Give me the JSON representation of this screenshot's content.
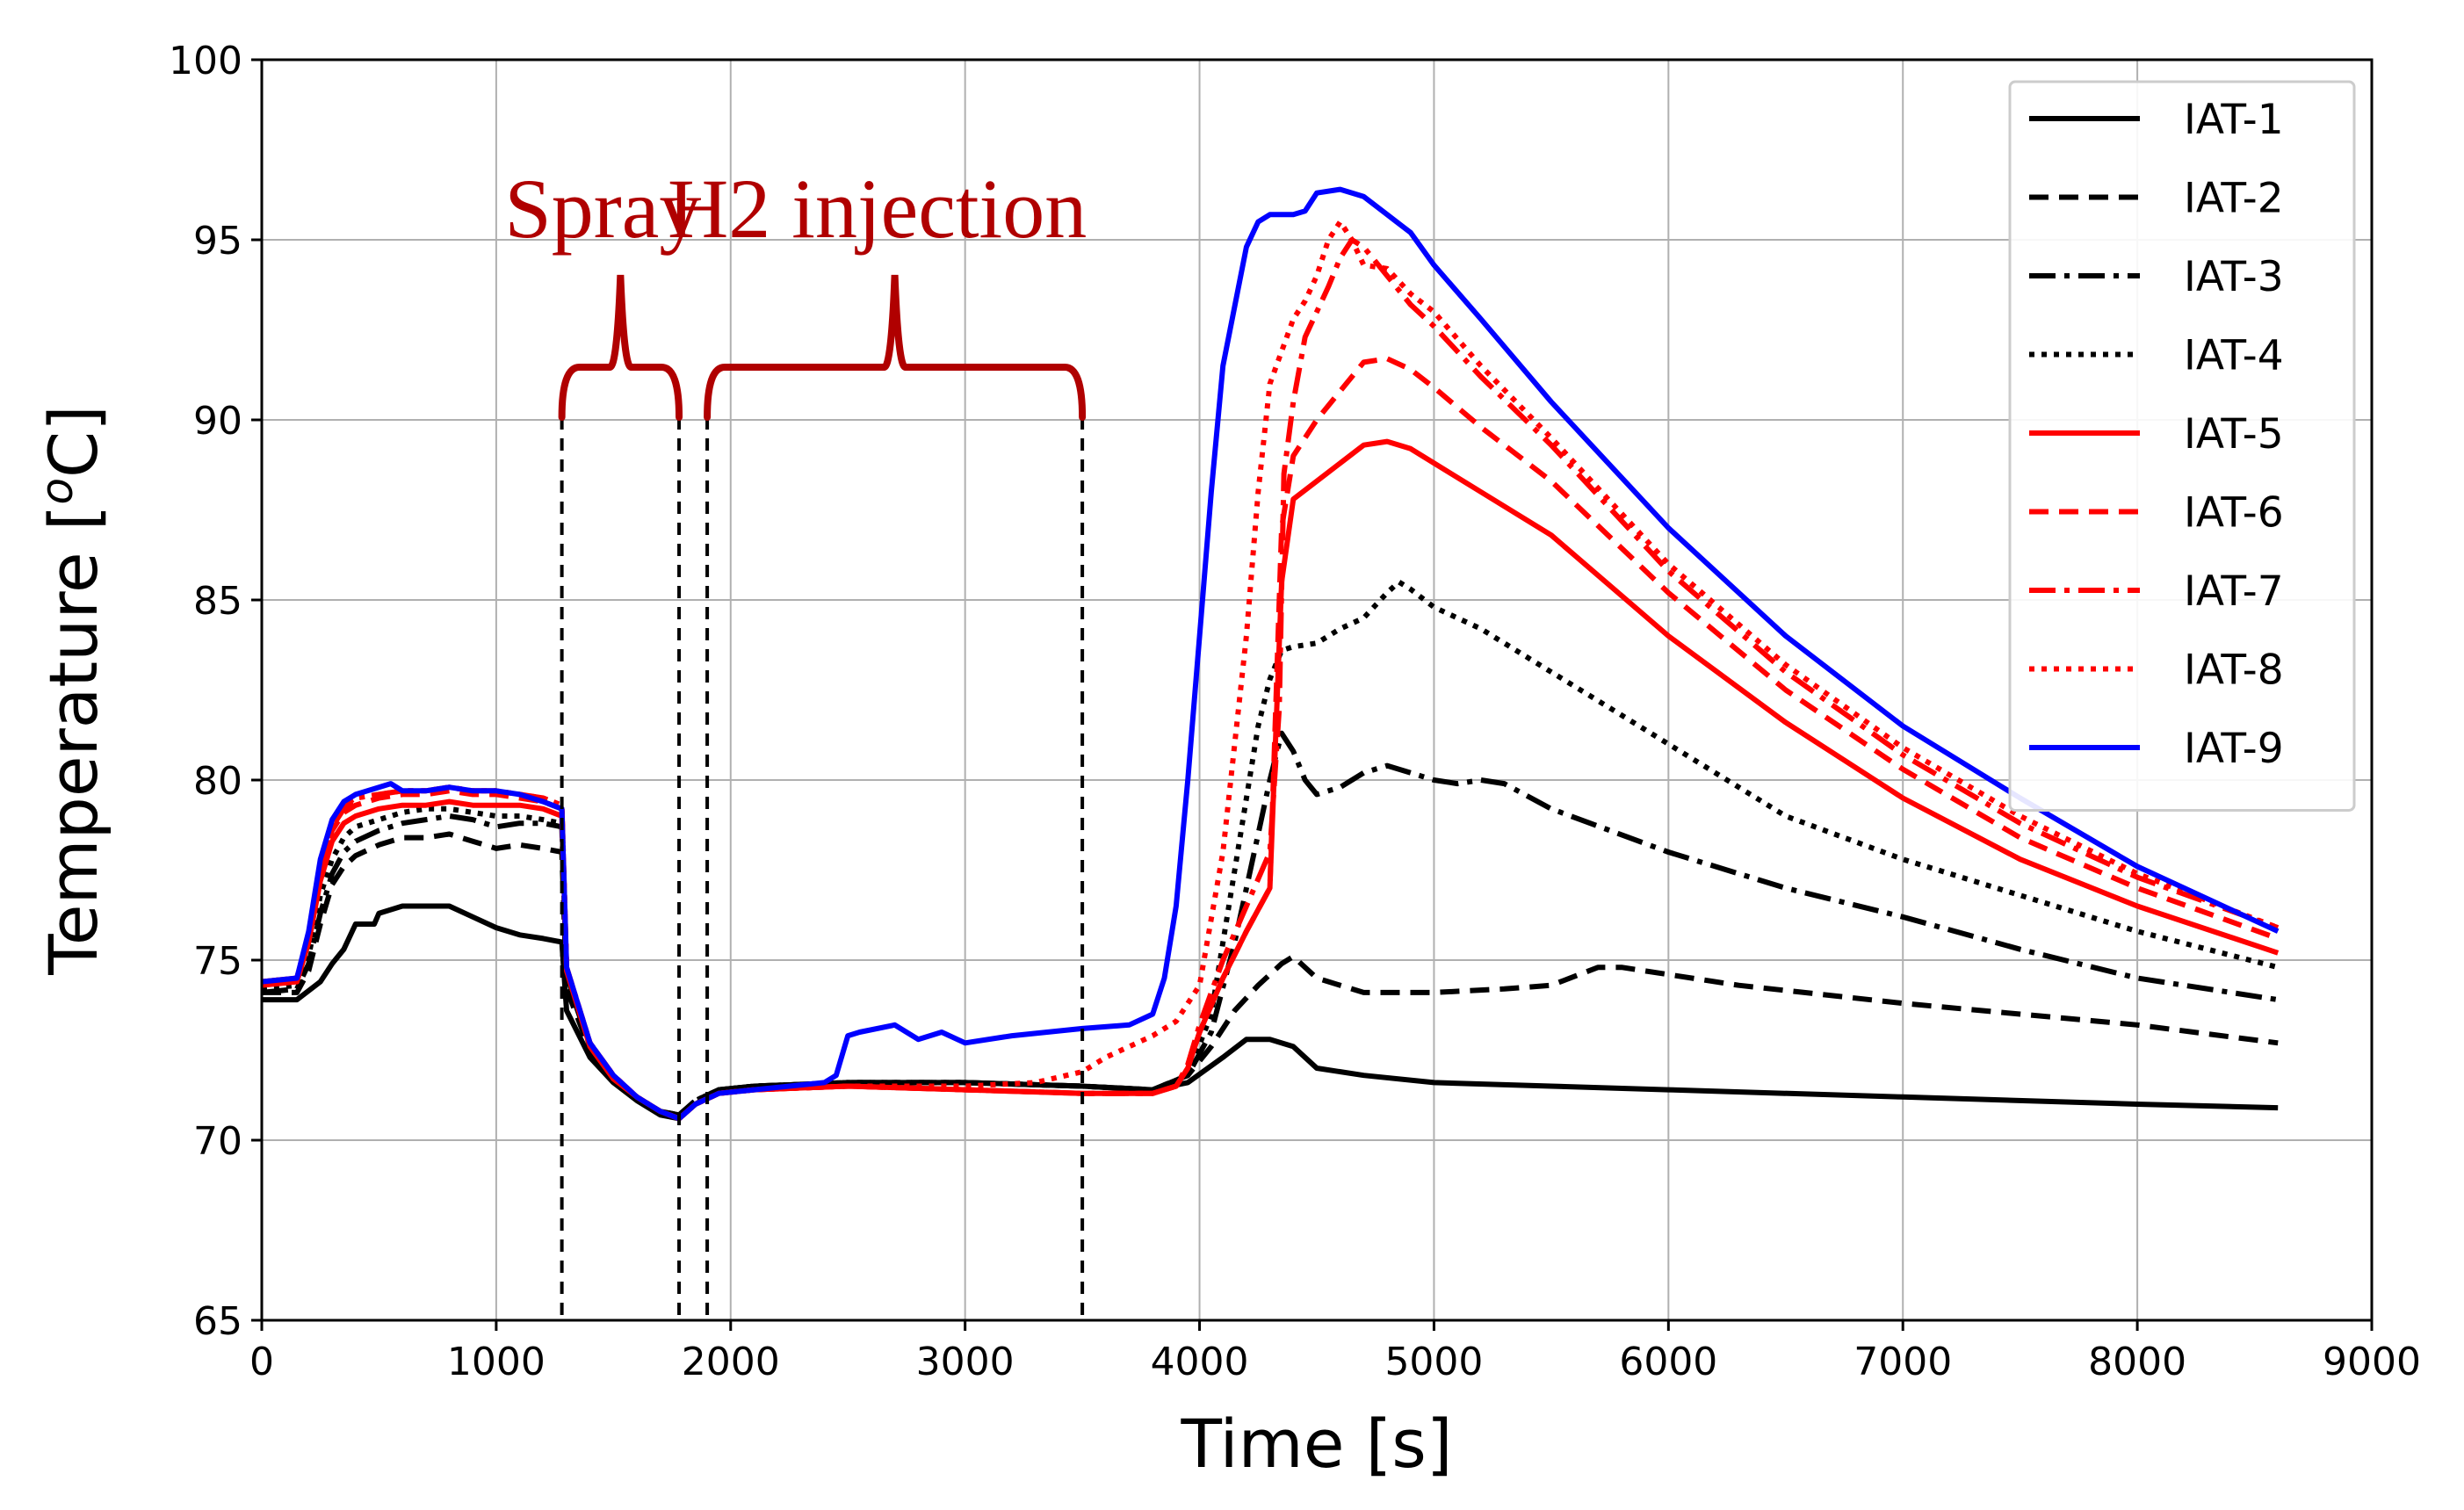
{
  "chart_data": {
    "type": "line",
    "title": "",
    "xlabel": "Time [s]",
    "ylabel_prefix": "Temperature [",
    "ylabel_sup": "o",
    "ylabel_suffix": "C]",
    "xlim": [
      0,
      9000
    ],
    "ylim": [
      65,
      100
    ],
    "xticks": [
      0,
      1000,
      2000,
      3000,
      4000,
      5000,
      6000,
      7000,
      8000,
      9000
    ],
    "yticks": [
      65,
      70,
      75,
      80,
      85,
      90,
      95,
      100
    ],
    "grid": true,
    "legend_position": "top-right",
    "annotations": [
      {
        "text": "Spray",
        "color": "#b00000",
        "range": [
          1280,
          1780
        ]
      },
      {
        "text": "H2 injection",
        "color": "#b00000",
        "range": [
          1900,
          3500
        ]
      }
    ],
    "series": [
      {
        "name": "IAT-1",
        "color": "#000000",
        "dash": "solid",
        "x": [
          0,
          150,
          250,
          300,
          350,
          400,
          480,
          500,
          550,
          600,
          700,
          800,
          900,
          1000,
          1100,
          1200,
          1280,
          1300,
          1400,
          1500,
          1600,
          1700,
          1780,
          1850,
          1950,
          2100,
          2500,
          3000,
          3500,
          3800,
          3950,
          4100,
          4200,
          4300,
          4400,
          4500,
          4700,
          5000,
          5500,
          6000,
          7000,
          8000,
          8600
        ],
        "y": [
          73.9,
          73.9,
          74.4,
          74.9,
          75.3,
          76.0,
          76.0,
          76.3,
          76.4,
          76.5,
          76.5,
          76.5,
          76.2,
          75.9,
          75.7,
          75.6,
          75.5,
          73.6,
          72.3,
          71.6,
          71.1,
          70.7,
          70.6,
          71.0,
          71.4,
          71.5,
          71.6,
          71.6,
          71.5,
          71.4,
          71.6,
          72.3,
          72.8,
          72.8,
          72.6,
          72.0,
          71.8,
          71.6,
          71.5,
          71.4,
          71.2,
          71.0,
          70.9
        ]
      },
      {
        "name": "IAT-2",
        "color": "#000000",
        "dash": "short",
        "x": [
          0,
          150,
          200,
          250,
          300,
          350,
          400,
          500,
          600,
          700,
          800,
          900,
          1000,
          1100,
          1200,
          1280,
          1300,
          1400,
          1500,
          1600,
          1700,
          1780,
          1850,
          1950,
          2100,
          2500,
          3000,
          3500,
          3800,
          3950,
          4050,
          4150,
          4250,
          4350,
          4400,
          4500,
          4700,
          5000,
          5300,
          5500,
          5700,
          5800,
          6000,
          6300,
          7000,
          7500,
          8000,
          8600
        ],
        "y": [
          74.1,
          74.1,
          74.7,
          76.0,
          77.1,
          77.6,
          77.9,
          78.2,
          78.4,
          78.4,
          78.5,
          78.3,
          78.1,
          78.2,
          78.1,
          78.0,
          74.2,
          72.5,
          71.7,
          71.2,
          70.8,
          70.7,
          71.1,
          71.4,
          71.5,
          71.6,
          71.6,
          71.5,
          71.4,
          71.8,
          72.6,
          73.6,
          74.3,
          74.9,
          75.1,
          74.5,
          74.1,
          74.1,
          74.2,
          74.3,
          74.8,
          74.8,
          74.6,
          74.3,
          73.8,
          73.5,
          73.2,
          72.7
        ]
      },
      {
        "name": "IAT-3",
        "color": "#000000",
        "dash": "dashdot",
        "x": [
          0,
          150,
          200,
          250,
          300,
          350,
          400,
          500,
          600,
          700,
          800,
          900,
          1000,
          1100,
          1200,
          1280,
          1300,
          1400,
          1500,
          1600,
          1700,
          1780,
          1850,
          1950,
          2100,
          2500,
          3000,
          3500,
          3800,
          3950,
          4050,
          4150,
          4250,
          4300,
          4350,
          4400,
          4450,
          4500,
          4600,
          4700,
          4800,
          4900,
          5000,
          5100,
          5200,
          5300,
          5500,
          6000,
          6500,
          7000,
          7500,
          8000,
          8600
        ],
        "y": [
          74.1,
          74.2,
          74.9,
          76.3,
          77.4,
          78.0,
          78.3,
          78.6,
          78.8,
          78.9,
          79.0,
          78.9,
          78.7,
          78.8,
          78.8,
          78.7,
          74.5,
          72.6,
          71.7,
          71.2,
          70.8,
          70.7,
          71.1,
          71.4,
          71.5,
          71.6,
          71.6,
          71.5,
          71.4,
          71.8,
          73.0,
          75.5,
          78.5,
          80.0,
          81.3,
          80.8,
          80.0,
          79.6,
          79.8,
          80.2,
          80.4,
          80.2,
          80.0,
          79.9,
          80.0,
          79.9,
          79.2,
          78.0,
          77.0,
          76.2,
          75.3,
          74.5,
          73.9
        ]
      },
      {
        "name": "IAT-4",
        "color": "#000000",
        "dash": "dotted",
        "x": [
          0,
          150,
          200,
          250,
          300,
          350,
          400,
          500,
          600,
          700,
          800,
          900,
          1000,
          1100,
          1200,
          1280,
          1300,
          1400,
          1500,
          1600,
          1700,
          1780,
          1850,
          1950,
          2100,
          2500,
          3000,
          3500,
          3800,
          3950,
          4050,
          4150,
          4250,
          4300,
          4350,
          4400,
          4500,
          4600,
          4700,
          4800,
          4850,
          4900,
          5000,
          5200,
          5500,
          5800,
          6000,
          6500,
          7000,
          7500,
          8000,
          8600
        ],
        "y": [
          74.2,
          74.3,
          75.1,
          76.8,
          77.8,
          78.4,
          78.7,
          78.9,
          79.1,
          79.2,
          79.2,
          79.1,
          79.0,
          79.0,
          78.9,
          78.8,
          74.6,
          72.6,
          71.7,
          71.2,
          70.8,
          70.7,
          71.1,
          71.4,
          71.5,
          71.6,
          71.6,
          71.5,
          71.4,
          71.8,
          73.5,
          77.5,
          81.5,
          82.8,
          83.6,
          83.7,
          83.8,
          84.2,
          84.5,
          85.2,
          85.5,
          85.3,
          84.8,
          84.2,
          83.0,
          81.8,
          81.0,
          79.0,
          77.8,
          76.8,
          75.8,
          74.8
        ]
      },
      {
        "name": "IAT-5",
        "color": "#ff0000",
        "dash": "solid",
        "x": [
          0,
          150,
          200,
          250,
          300,
          350,
          400,
          500,
          600,
          700,
          800,
          900,
          1000,
          1100,
          1200,
          1280,
          1300,
          1400,
          1500,
          1600,
          1700,
          1780,
          1850,
          1950,
          2100,
          2500,
          3000,
          3500,
          3800,
          3900,
          3950,
          4000,
          4100,
          4200,
          4300,
          4350,
          4400,
          4500,
          4600,
          4700,
          4800,
          4900,
          5000,
          5200,
          5500,
          6000,
          6500,
          7000,
          7500,
          8000,
          8600
        ],
        "y": [
          74.3,
          74.4,
          75.5,
          77.2,
          78.3,
          78.8,
          79.0,
          79.2,
          79.3,
          79.3,
          79.4,
          79.3,
          79.3,
          79.3,
          79.2,
          79.0,
          74.7,
          72.6,
          71.7,
          71.2,
          70.8,
          70.6,
          71.0,
          71.3,
          71.4,
          71.5,
          71.4,
          71.3,
          71.3,
          71.5,
          72.0,
          73.0,
          74.5,
          75.8,
          77.0,
          85.5,
          87.8,
          88.3,
          88.8,
          89.3,
          89.4,
          89.2,
          88.8,
          88.0,
          86.8,
          84.0,
          81.6,
          79.5,
          77.8,
          76.5,
          75.2
        ]
      },
      {
        "name": "IAT-6",
        "color": "#ff0000",
        "dash": "short",
        "x": [
          0,
          150,
          200,
          250,
          300,
          350,
          400,
          500,
          600,
          700,
          800,
          900,
          1000,
          1100,
          1200,
          1280,
          1300,
          1400,
          1500,
          1600,
          1700,
          1780,
          1850,
          1950,
          2100,
          2500,
          3000,
          3500,
          3800,
          3900,
          3950,
          4000,
          4100,
          4200,
          4300,
          4350,
          4400,
          4500,
          4600,
          4700,
          4800,
          4900,
          5000,
          5200,
          5500,
          6000,
          6500,
          7000,
          7500,
          8000,
          8600
        ],
        "y": [
          74.4,
          74.5,
          75.6,
          77.5,
          78.6,
          79.1,
          79.3,
          79.5,
          79.6,
          79.6,
          79.7,
          79.6,
          79.6,
          79.5,
          79.4,
          79.2,
          74.8,
          72.7,
          71.8,
          71.2,
          70.8,
          70.6,
          71.0,
          71.3,
          71.4,
          71.5,
          71.4,
          71.3,
          71.3,
          71.5,
          72.0,
          73.0,
          74.5,
          75.8,
          77.0,
          87.0,
          89.0,
          90.0,
          90.8,
          91.6,
          91.7,
          91.4,
          90.9,
          89.8,
          88.3,
          85.2,
          82.5,
          80.3,
          78.4,
          77.0,
          75.6
        ]
      },
      {
        "name": "IAT-7",
        "color": "#ff0000",
        "dash": "dashdot",
        "x": [
          0,
          150,
          200,
          250,
          300,
          350,
          400,
          500,
          600,
          700,
          800,
          900,
          1000,
          1100,
          1200,
          1280,
          1300,
          1400,
          1500,
          1600,
          1700,
          1780,
          1850,
          1950,
          2100,
          2500,
          3000,
          3500,
          3800,
          3900,
          3950,
          4000,
          4100,
          4200,
          4300,
          4340,
          4360,
          4400,
          4450,
          4500,
          4550,
          4600,
          4650,
          4700,
          4800,
          4900,
          5000,
          5200,
          5500,
          6000,
          6500,
          7000,
          7500,
          8000,
          8600
        ],
        "y": [
          74.4,
          74.5,
          75.7,
          77.6,
          78.7,
          79.2,
          79.5,
          79.6,
          79.7,
          79.7,
          79.8,
          79.7,
          79.7,
          79.6,
          79.5,
          79.3,
          74.8,
          72.7,
          71.8,
          71.2,
          70.8,
          70.6,
          71.0,
          71.3,
          71.4,
          71.5,
          71.4,
          71.3,
          71.3,
          71.5,
          72.1,
          73.2,
          75.0,
          76.5,
          78.0,
          82.0,
          88.5,
          90.5,
          92.3,
          93.0,
          93.7,
          94.5,
          95.0,
          94.8,
          94.0,
          93.2,
          92.6,
          91.2,
          89.3,
          85.8,
          83.0,
          80.7,
          78.8,
          77.3,
          75.9
        ]
      },
      {
        "name": "IAT-8",
        "color": "#ff0000",
        "dash": "dotted",
        "x": [
          0,
          150,
          200,
          250,
          300,
          350,
          400,
          500,
          600,
          700,
          800,
          900,
          1000,
          1100,
          1200,
          1280,
          1300,
          1400,
          1500,
          1600,
          1700,
          1780,
          1850,
          1950,
          2100,
          2500,
          3000,
          3300,
          3500,
          3600,
          3700,
          3800,
          3900,
          4000,
          4100,
          4200,
          4250,
          4300,
          4400,
          4450,
          4500,
          4550,
          4600,
          4650,
          4700,
          4800,
          4900,
          5000,
          5200,
          5500,
          6000,
          6500,
          7000,
          7500,
          8000,
          8600
        ],
        "y": [
          74.4,
          74.5,
          75.7,
          77.7,
          78.8,
          79.3,
          79.5,
          79.6,
          79.7,
          79.7,
          79.8,
          79.7,
          79.7,
          79.6,
          79.5,
          79.3,
          74.8,
          72.7,
          71.8,
          71.2,
          70.8,
          70.6,
          71.0,
          71.3,
          71.4,
          71.5,
          71.5,
          71.6,
          71.9,
          72.3,
          72.6,
          72.9,
          73.3,
          74.3,
          78.0,
          84.0,
          88.0,
          91.0,
          92.8,
          93.3,
          94.0,
          95.0,
          95.5,
          95.0,
          94.3,
          94.2,
          93.5,
          93.0,
          91.5,
          89.5,
          86.0,
          83.2,
          80.9,
          79.0,
          77.4,
          75.9
        ]
      },
      {
        "name": "IAT-9",
        "color": "#0000ff",
        "dash": "solid",
        "x": [
          0,
          150,
          200,
          250,
          300,
          350,
          400,
          500,
          550,
          600,
          700,
          800,
          900,
          1000,
          1100,
          1200,
          1280,
          1300,
          1400,
          1500,
          1600,
          1700,
          1780,
          1850,
          1950,
          2100,
          2400,
          2450,
          2500,
          2550,
          2700,
          2800,
          2900,
          3000,
          3200,
          3500,
          3700,
          3800,
          3850,
          3900,
          3950,
          4000,
          4050,
          4100,
          4200,
          4250,
          4300,
          4400,
          4450,
          4500,
          4600,
          4700,
          4800,
          4900,
          5000,
          5200,
          5500,
          6000,
          6500,
          7000,
          7500,
          8000,
          8600
        ],
        "y": [
          74.4,
          74.5,
          75.8,
          77.8,
          78.9,
          79.4,
          79.6,
          79.8,
          79.9,
          79.7,
          79.7,
          79.8,
          79.7,
          79.7,
          79.6,
          79.4,
          79.2,
          74.8,
          72.7,
          71.8,
          71.2,
          70.8,
          70.6,
          71.0,
          71.3,
          71.4,
          71.6,
          71.8,
          72.9,
          73.0,
          73.2,
          72.8,
          73.0,
          72.7,
          72.9,
          73.1,
          73.2,
          73.5,
          74.5,
          76.5,
          80.0,
          84.0,
          88.0,
          91.5,
          94.8,
          95.5,
          95.7,
          95.7,
          95.8,
          96.3,
          96.4,
          96.2,
          95.7,
          95.2,
          94.3,
          92.8,
          90.5,
          87.0,
          84.0,
          81.5,
          79.5,
          77.6,
          75.8
        ]
      }
    ]
  }
}
